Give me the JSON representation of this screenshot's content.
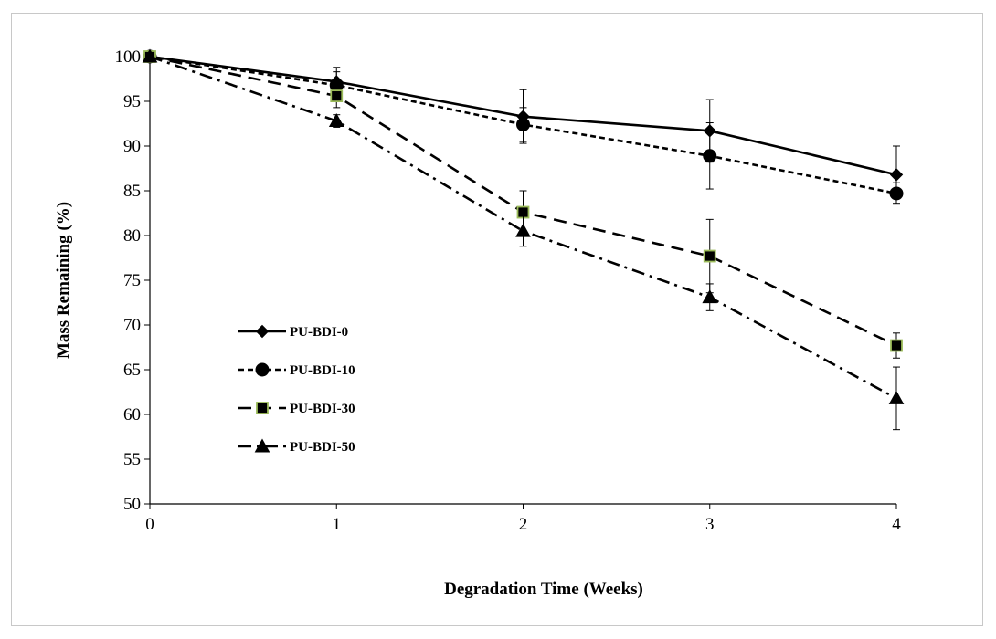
{
  "chart_data": {
    "type": "line",
    "xlabel": "Degradation Time (Weeks)",
    "ylabel": "Mass Remaining (%)",
    "x": [
      0,
      1,
      2,
      3,
      4
    ],
    "xlim": [
      0,
      4
    ],
    "ylim": [
      50,
      100
    ],
    "yticks": [
      50,
      55,
      60,
      65,
      70,
      75,
      80,
      85,
      90,
      95,
      100
    ],
    "xticks": [
      0,
      1,
      2,
      3,
      4
    ],
    "grid": false,
    "legend_position": "left-middle",
    "series": [
      {
        "name": "PU-BDI-0",
        "marker": "diamond",
        "line_style": "solid",
        "color": "#000000",
        "marker_fill": "#000000",
        "values": [
          100,
          97.2,
          93.3,
          91.7,
          86.8
        ],
        "error": [
          0,
          1.6,
          3.0,
          3.5,
          3.2
        ]
      },
      {
        "name": "PU-BDI-10",
        "marker": "circle",
        "line_style": "short-dash",
        "color": "#000000",
        "marker_fill": "#000000",
        "values": [
          100,
          96.8,
          92.4,
          88.9,
          84.7
        ],
        "error": [
          0,
          1.5,
          1.9,
          3.7,
          1.2
        ]
      },
      {
        "name": "PU-BDI-30",
        "marker": "square",
        "line_style": "long-dash",
        "color": "#000000",
        "marker_fill": "#000000",
        "marker_edge": "#9bbb59",
        "values": [
          100,
          95.6,
          82.6,
          77.7,
          67.7
        ],
        "error": [
          0,
          1.3,
          2.4,
          4.1,
          1.4
        ]
      },
      {
        "name": "PU-BDI-50",
        "marker": "triangle",
        "line_style": "dash-dot",
        "color": "#000000",
        "marker_fill": "#000000",
        "values": [
          100,
          92.8,
          80.5,
          73.1,
          61.8
        ],
        "error": [
          0,
          0.7,
          1.7,
          1.5,
          3.5
        ]
      }
    ]
  }
}
